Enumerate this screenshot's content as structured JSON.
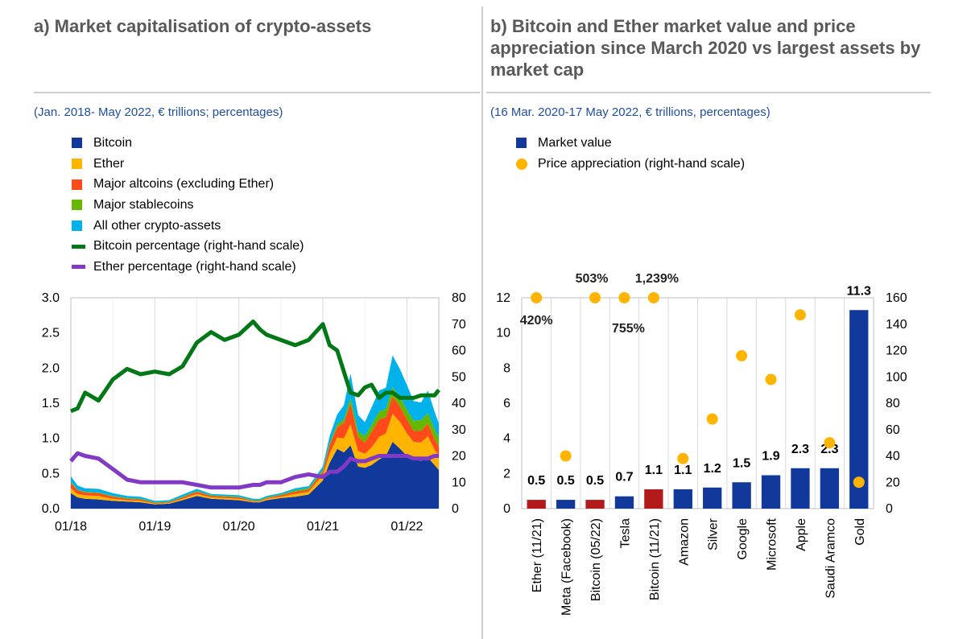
{
  "panel_a": {
    "title": "a) Market capitalisation of crypto-assets",
    "subtitle": "(Jan. 2018- May 2022, € trillions; percentages)",
    "legend": [
      {
        "label": "Bitcoin",
        "type": "box",
        "color": "#10399b"
      },
      {
        "label": "Ether",
        "type": "box",
        "color": "#ffb400"
      },
      {
        "label": "Major altcoins (excluding Ether)",
        "type": "box",
        "color": "#ff4b1a"
      },
      {
        "label": "Major stablecoins",
        "type": "box",
        "color": "#65b800"
      },
      {
        "label": "All other crypto-assets",
        "type": "box",
        "color": "#00b1ea"
      },
      {
        "label": "Bitcoin percentage (right-hand scale)",
        "type": "line",
        "color": "#007816"
      },
      {
        "label": "Ether percentage  (right-hand scale)",
        "type": "line",
        "color": "#8139c6"
      }
    ]
  },
  "panel_b": {
    "title": "b) Bitcoin and Ether market value and price appreciation since March 2020 vs largest assets by market cap",
    "subtitle": "(16 Mar. 2020-17 May 2022, € trillions, percentages)",
    "legend": [
      {
        "label": "Market value",
        "type": "box",
        "color": "#10399b"
      },
      {
        "label": "Price appreciation (right-hand scale)",
        "type": "dot",
        "color": "#ffb400"
      }
    ]
  },
  "chart_data": [
    {
      "id": "a",
      "type": "area",
      "title": "Market capitalisation of crypto-assets",
      "x_tick_labels": [
        "01/18",
        "01/19",
        "01/20",
        "01/21",
        "01/22"
      ],
      "x": [
        2018.0,
        2018.08,
        2018.17,
        2018.33,
        2018.5,
        2018.67,
        2018.83,
        2019.0,
        2019.17,
        2019.33,
        2019.5,
        2019.67,
        2019.83,
        2020.0,
        2020.17,
        2020.25,
        2020.33,
        2020.5,
        2020.67,
        2020.83,
        2021.0,
        2021.08,
        2021.17,
        2021.25,
        2021.33,
        2021.42,
        2021.5,
        2021.58,
        2021.67,
        2021.75,
        2021.83,
        2021.92,
        2022.0,
        2022.08,
        2022.17,
        2022.25,
        2022.33,
        2022.38
      ],
      "y_left": {
        "min": 0,
        "max": 3.0,
        "ticks": [
          "0.0",
          "0.5",
          "1.0",
          "1.5",
          "2.0",
          "2.5",
          "3.0"
        ]
      },
      "y_right": {
        "min": 0,
        "max": 80,
        "ticks": [
          "0",
          "10",
          "20",
          "30",
          "40",
          "50",
          "60",
          "70",
          "80"
        ]
      },
      "series": [
        {
          "name": "Bitcoin",
          "color": "#10399b",
          "values": [
            0.22,
            0.16,
            0.14,
            0.13,
            0.11,
            0.1,
            0.09,
            0.06,
            0.07,
            0.12,
            0.18,
            0.14,
            0.13,
            0.12,
            0.09,
            0.09,
            0.12,
            0.15,
            0.17,
            0.2,
            0.4,
            0.65,
            0.85,
            0.8,
            0.9,
            0.6,
            0.58,
            0.62,
            0.7,
            0.75,
            0.95,
            0.85,
            0.75,
            0.7,
            0.68,
            0.73,
            0.62,
            0.55
          ]
        },
        {
          "name": "Ether",
          "color": "#ffb400",
          "values": [
            0.07,
            0.05,
            0.05,
            0.05,
            0.03,
            0.02,
            0.02,
            0.01,
            0.01,
            0.02,
            0.03,
            0.02,
            0.02,
            0.02,
            0.01,
            0.01,
            0.02,
            0.02,
            0.04,
            0.04,
            0.08,
            0.13,
            0.16,
            0.2,
            0.3,
            0.22,
            0.2,
            0.25,
            0.32,
            0.32,
            0.4,
            0.38,
            0.32,
            0.25,
            0.26,
            0.3,
            0.22,
            0.2
          ]
        },
        {
          "name": "Major altcoins (excluding Ether)",
          "color": "#ff4b1a",
          "values": [
            0.08,
            0.05,
            0.04,
            0.04,
            0.03,
            0.02,
            0.02,
            0.01,
            0.01,
            0.02,
            0.03,
            0.02,
            0.02,
            0.02,
            0.01,
            0.01,
            0.01,
            0.02,
            0.03,
            0.03,
            0.05,
            0.12,
            0.15,
            0.22,
            0.3,
            0.2,
            0.16,
            0.22,
            0.25,
            0.23,
            0.25,
            0.22,
            0.2,
            0.16,
            0.17,
            0.18,
            0.15,
            0.13
          ]
        },
        {
          "name": "Major stablecoins",
          "color": "#65b800",
          "values": [
            0.01,
            0.01,
            0.01,
            0.01,
            0.01,
            0.01,
            0.01,
            0.01,
            0.01,
            0.01,
            0.01,
            0.01,
            0.01,
            0.01,
            0.01,
            0.01,
            0.01,
            0.01,
            0.02,
            0.02,
            0.02,
            0.03,
            0.04,
            0.05,
            0.07,
            0.08,
            0.09,
            0.1,
            0.11,
            0.12,
            0.13,
            0.13,
            0.14,
            0.14,
            0.15,
            0.15,
            0.14,
            0.13
          ]
        },
        {
          "name": "All other crypto-assets",
          "color": "#00b1ea",
          "values": [
            0.08,
            0.06,
            0.05,
            0.05,
            0.04,
            0.03,
            0.03,
            0.02,
            0.02,
            0.03,
            0.03,
            0.02,
            0.02,
            0.02,
            0.02,
            0.02,
            0.02,
            0.02,
            0.03,
            0.03,
            0.05,
            0.1,
            0.14,
            0.2,
            0.35,
            0.23,
            0.2,
            0.25,
            0.3,
            0.3,
            0.45,
            0.4,
            0.35,
            0.28,
            0.25,
            0.32,
            0.25,
            0.2
          ]
        }
      ],
      "line_series": [
        {
          "name": "Bitcoin percentage (right-hand scale)",
          "color": "#007816",
          "values": [
            37,
            38,
            44,
            41,
            49,
            53,
            51,
            52,
            51,
            54,
            63,
            67,
            64,
            66,
            71,
            68,
            66,
            64,
            62,
            64,
            70,
            62,
            60,
            52,
            44,
            43,
            46,
            47,
            42,
            44,
            44,
            42,
            42,
            42,
            43,
            43,
            43,
            45
          ]
        },
        {
          "name": "Ether percentage (right-hand scale)",
          "color": "#8139c6",
          "values": [
            18,
            21,
            20,
            19,
            15,
            11,
            10,
            10,
            10,
            10,
            9,
            8,
            8,
            8,
            9,
            9,
            10,
            10,
            12,
            13,
            12,
            14,
            14,
            16,
            19,
            18,
            18,
            19,
            20,
            20,
            20,
            20,
            20,
            19,
            19,
            19,
            20,
            20
          ]
        }
      ]
    },
    {
      "id": "b",
      "type": "bar",
      "categories": [
        "Ether (11/21)",
        "Meta (Facebook)",
        "Bitcoin (05/22)",
        "Tesla",
        "Bitcoin (11/21)",
        "Amazon",
        "Silver",
        "Google",
        "Microsoft",
        "Apple",
        "Saudi Aramco",
        "Gold"
      ],
      "series": [
        {
          "name": "Market value",
          "values": [
            0.5,
            0.5,
            0.5,
            0.7,
            1.1,
            1.1,
            1.2,
            1.5,
            1.9,
            2.3,
            2.3,
            11.3
          ],
          "value_labels": [
            "0.5",
            "0.5",
            "0.5",
            "0.7",
            "1.1",
            "1.1",
            "1.2",
            "1.5",
            "1.9",
            "2.3",
            "2.3",
            "11.3"
          ],
          "colors": [
            "#b31b1b",
            "#10399b",
            "#b31b1b",
            "#10399b",
            "#b31b1b",
            "#10399b",
            "#10399b",
            "#10399b",
            "#10399b",
            "#10399b",
            "#10399b",
            "#10399b"
          ]
        },
        {
          "name": "Price appreciation (right-hand scale)",
          "values": [
            160,
            40,
            160,
            160,
            160,
            38,
            68,
            116,
            98,
            147,
            50,
            20
          ],
          "color": "#ffb400"
        }
      ],
      "capped_labels": [
        {
          "index": 0,
          "label": "420%"
        },
        {
          "index": 2,
          "label": "503%"
        },
        {
          "index": 3,
          "label": "755%"
        },
        {
          "index": 4,
          "label": "1,239%"
        }
      ],
      "y_left": {
        "min": 0,
        "max": 12,
        "ticks": [
          "0",
          "2",
          "4",
          "6",
          "8",
          "10",
          "12"
        ]
      },
      "y_right": {
        "min": 0,
        "max": 160,
        "ticks": [
          "0",
          "20",
          "40",
          "60",
          "80",
          "100",
          "120",
          "140",
          "160"
        ]
      }
    }
  ]
}
